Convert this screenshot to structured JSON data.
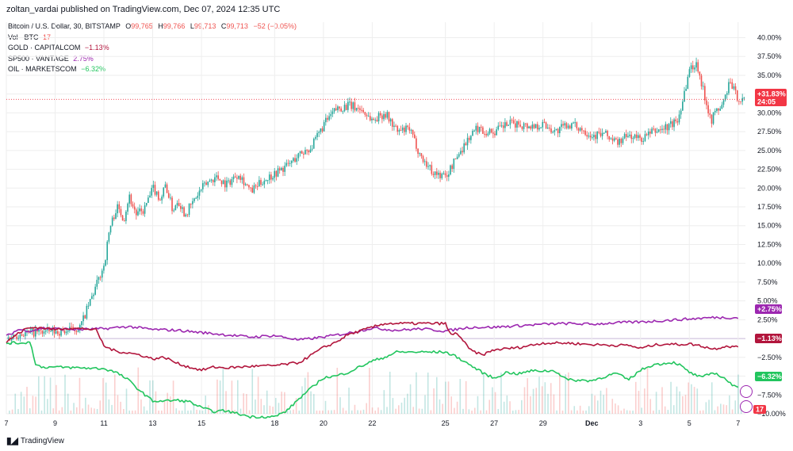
{
  "header": {
    "published": "zoltan_vardai published on TradingView.com, Dec 07, 2024 12:35 UTC"
  },
  "legend": {
    "main_symbol": "Bitcoin / U.S. Dollar, 30, BITSTAMP",
    "o_label": "O",
    "o_value": "99,765",
    "h_label": "H",
    "h_value": "99,766",
    "l_label": "L",
    "l_value": "99,713",
    "c_label": "C",
    "c_value": "99,713",
    "change": "−52 (−0.05%)",
    "vol_label": "Vol · BTC",
    "vol_value": "17",
    "gold_label": "GOLD · CAPITALCOM",
    "gold_value": "−1.13%",
    "sp_label": "SP500 · VANTAGE",
    "sp_value": "2.75%",
    "oil_label": "OIL · MARKETSCOM",
    "oil_value": "−6.32%"
  },
  "badges": {
    "btc_pct": "+31.83%",
    "btc_timer": "24:05",
    "sp_pct": "+2.75%",
    "gold_pct": "−1.13%",
    "oil_pct": "−6.32%",
    "vol": "17"
  },
  "colors": {
    "btc_up": "#26a69a",
    "btc_down": "#ef5350",
    "btc_badge": "#f23645",
    "gold": "#b2153c",
    "sp500": "#9c27b0",
    "oil": "#22c55e",
    "grid": "#eeeeee",
    "zero_line": "#c8b7d8"
  },
  "footer": {
    "brand": "TradingView",
    "logo": "tradingview-logo-icon"
  },
  "chart_data": {
    "type": "line",
    "percent_scale": true,
    "ylim": [
      -10,
      41
    ],
    "y_ticks": [
      "40.00%",
      "37.50%",
      "35.00%",
      "32.50%",
      "30.00%",
      "27.50%",
      "25.00%",
      "22.50%",
      "20.00%",
      "17.50%",
      "15.00%",
      "12.50%",
      "10.00%",
      "7.50%",
      "5.00%",
      "2.50%",
      "0.00%",
      "−2.50%",
      "−5.00%",
      "−7.50%",
      "−10.00%"
    ],
    "x_ticks": [
      "7",
      "9",
      "11",
      "13",
      "15",
      "18",
      "20",
      "22",
      "25",
      "27",
      "29",
      "Dec",
      "3",
      "5",
      "7"
    ],
    "x_tick_pos": [
      0,
      2,
      4,
      6,
      8,
      11,
      13,
      15,
      18,
      20,
      22,
      24,
      26,
      28,
      30
    ],
    "x_range": [
      0,
      30.3
    ],
    "series": [
      {
        "name": "Bitcoin / U.S. Dollar, 30, BITSTAMP",
        "type": "candlestick",
        "x": [
          0,
          0.5,
          1,
          1.5,
          2,
          2.5,
          3,
          3.3,
          3.6,
          4,
          4.2,
          4.5,
          4.8,
          5,
          5.3,
          5.6,
          6,
          6.3,
          6.5,
          6.8,
          7,
          7.3,
          7.6,
          8,
          8.3,
          8.6,
          9,
          9.5,
          10,
          10.5,
          11,
          11.5,
          12,
          12.5,
          13,
          13.5,
          14,
          14.5,
          15,
          15.5,
          16,
          16.5,
          17,
          17.5,
          18,
          18.5,
          19,
          19.3,
          19.6,
          20,
          20.5,
          21,
          21.5,
          22,
          22.5,
          23,
          23.5,
          24,
          24.5,
          25,
          25.5,
          26,
          26.5,
          27,
          27.5,
          28,
          28.3,
          28.5,
          28.7,
          28.9,
          29,
          29.2,
          29.4,
          29.6,
          29.8,
          30,
          30.2
        ],
        "values": [
          0,
          0.6,
          0.8,
          0.9,
          0.9,
          1,
          1.5,
          4,
          6.5,
          10,
          14.5,
          17.5,
          16,
          19,
          16.5,
          17,
          20,
          18.5,
          20.5,
          17,
          18.5,
          16.5,
          18,
          20,
          21,
          21.5,
          20.5,
          22,
          19.5,
          21,
          22,
          23,
          24.5,
          25.5,
          28.5,
          30.5,
          31,
          30.5,
          29,
          30,
          27.5,
          27.8,
          24,
          22,
          21.5,
          24.5,
          27,
          28,
          27.5,
          27.5,
          28.5,
          28.5,
          28.2,
          28.5,
          27.5,
          28.5,
          28,
          27,
          27.2,
          26,
          27,
          26.5,
          27.5,
          28,
          29,
          36,
          36.5,
          33.5,
          31,
          29,
          30,
          30.5,
          31.5,
          34,
          33,
          31.8,
          31.8
        ]
      },
      {
        "name": "SP500 · VANTAGE",
        "type": "line",
        "x": [
          0,
          0.5,
          1,
          1.5,
          2,
          3,
          4,
          5,
          5.5,
          6,
          7,
          8,
          9,
          10,
          11,
          12,
          13,
          14,
          15,
          16,
          17,
          18,
          19,
          20,
          21,
          22,
          23,
          24,
          25,
          26,
          27,
          28,
          28.5,
          29,
          29.5,
          30
        ],
        "values": [
          0.3,
          1.2,
          1,
          1.4,
          1.3,
          1.2,
          1.3,
          1.6,
          1.4,
          1.2,
          1.1,
          0.8,
          0.5,
          0.2,
          0.4,
          -0.2,
          0.2,
          0.7,
          1.4,
          1.1,
          1.3,
          1,
          1.5,
          1.5,
          1.7,
          1.9,
          2,
          1.9,
          2.1,
          2.2,
          2.4,
          2.6,
          2.7,
          2.8,
          2.8,
          2.75
        ]
      },
      {
        "name": "GOLD · CAPITALCOM",
        "type": "line",
        "x": [
          0,
          0.4,
          0.8,
          1.2,
          1.5,
          2,
          2.5,
          3,
          3.3,
          3.7,
          4,
          4.5,
          5,
          5.5,
          6,
          6.5,
          7,
          7.5,
          8,
          8.5,
          9,
          10,
          11,
          11.5,
          12,
          12.5,
          13,
          13.5,
          14,
          14.5,
          15,
          15.5,
          16,
          17,
          17.5,
          18,
          18.2,
          18.5,
          19,
          19.5,
          20,
          21,
          22,
          23,
          24,
          25,
          25.5,
          26,
          26.5,
          27,
          27.5,
          28,
          28.5,
          29,
          29.5,
          29.8,
          30
        ],
        "values": [
          -0.5,
          0.5,
          1.3,
          1.5,
          1.4,
          1.2,
          1.4,
          1.3,
          1.3,
          1.1,
          -1,
          -1.7,
          -1.9,
          -2.2,
          -2.7,
          -2.5,
          -3.3,
          -3.8,
          -4.2,
          -3.8,
          -3.9,
          -3.7,
          -3.6,
          -3.4,
          -3.2,
          -2.2,
          -1.2,
          -0.5,
          0.5,
          1,
          1.5,
          2,
          2,
          2,
          2,
          2,
          0.5,
          0.7,
          -1.5,
          -2.2,
          -1.5,
          -1.2,
          -0.6,
          -0.6,
          -0.8,
          -0.9,
          -0.9,
          -1.3,
          -0.9,
          -0.7,
          -0.8,
          -0.7,
          -1,
          -1.4,
          -1,
          -1.1,
          -1.13
        ]
      },
      {
        "name": "OIL · MARKETSCOM",
        "type": "line",
        "x": [
          0,
          0.5,
          1,
          1.2,
          1.5,
          2,
          3,
          4,
          4.5,
          5,
          5.5,
          6,
          6.5,
          7,
          7.5,
          8,
          8.5,
          9,
          10,
          11,
          11.5,
          12,
          13,
          13.5,
          14,
          15,
          15.5,
          16,
          16.5,
          17,
          17.5,
          18,
          18.5,
          19,
          19.5,
          20,
          20.5,
          21,
          21.5,
          22,
          22.5,
          23,
          24,
          25,
          25.5,
          26,
          26.5,
          27,
          27.2,
          27.4,
          27.6,
          27.8,
          28,
          28.5,
          29,
          29.5,
          29.8,
          30
        ],
        "values": [
          -0.6,
          -0.6,
          -0.5,
          -3.5,
          -3.8,
          -3.8,
          -3.9,
          -4,
          -4.5,
          -5.5,
          -7,
          -8.3,
          -8.3,
          -8.2,
          -8.4,
          -9.2,
          -9.7,
          -9.6,
          -10.4,
          -10.4,
          -9.6,
          -8,
          -5.2,
          -5,
          -4.5,
          -3,
          -2.5,
          -1.8,
          -1.8,
          -1.8,
          -1.8,
          -1.8,
          -2.5,
          -3.5,
          -4.5,
          -5.3,
          -4.5,
          -4.7,
          -4.3,
          -4.3,
          -4.3,
          -5.5,
          -5.6,
          -4.6,
          -5.5,
          -4.2,
          -3.5,
          -3.3,
          -3.2,
          -3.2,
          -3.5,
          -4,
          -4.5,
          -5.2,
          -4.5,
          -5.4,
          -6.4,
          -6.32
        ]
      }
    ]
  }
}
